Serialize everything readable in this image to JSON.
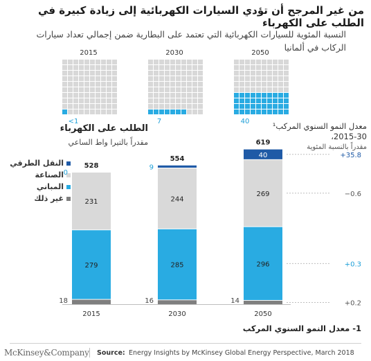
{
  "title": "من غير المرجح أن تؤدي السيارات الكهربائية إلى زيادة كبيرة في الطلب على الكهرباء",
  "subtitle": "النسبة المئوية للسيارات الكهربائية التي تعتمد على البطارية ضمن إجمالي تعداد سيارات الركاب في ألمانيا",
  "colors": {
    "road_transport": "#1f5aa6",
    "industry": "#d9d9d9",
    "buildings": "#29abe2",
    "other": "#7f7f7f",
    "waffle_on": "#29abe2",
    "waffle_off": "#d8d8d8",
    "accent_text": "#1fa0d8"
  },
  "waffle": [
    {
      "year": "2015",
      "percent_label": "<1",
      "percent": 1
    },
    {
      "year": "2030",
      "percent_label": "7",
      "percent": 7
    },
    {
      "year": "2050",
      "percent_label": "40",
      "percent": 40
    }
  ],
  "demand": {
    "title": "الطلب على الكهرباء",
    "unit": "مقدراً بالتيرا واط الساعي"
  },
  "growth": {
    "title": "معدل النمو السنوي المركب¹ 30-2015،",
    "unit": "مقدراً بالنسبة المئوية"
  },
  "legend": [
    {
      "label": "النقل الطرقي",
      "color": "#1f5aa6"
    },
    {
      "label": "الصناعة",
      "color": "#d9d9d9"
    },
    {
      "label": "المباني",
      "color": "#29abe2"
    },
    {
      "label": "غير ذلك",
      "color": "#7f7f7f"
    }
  ],
  "footnote": "1- معدل النمو السنوي المركب",
  "footer": {
    "logo": "McKinsey&Company",
    "source_label": "Source:",
    "source_text": "Energy Insights by McKinsey Global Energy Perspective, March 2018"
  },
  "chart_data": {
    "type": "bar",
    "stacked": true,
    "categories": [
      "2015",
      "2030",
      "2050"
    ],
    "totals": [
      528,
      554,
      619
    ],
    "series": [
      {
        "name": "غير ذلك",
        "values": [
          18,
          16,
          14
        ],
        "color": "#7f7f7f"
      },
      {
        "name": "المباني",
        "values": [
          279,
          285,
          296
        ],
        "color": "#29abe2"
      },
      {
        "name": "الصناعة",
        "values": [
          231,
          244,
          269
        ],
        "color": "#d9d9d9"
      },
      {
        "name": "النقل الطرقي",
        "values": [
          0,
          9,
          40
        ],
        "color": "#1f5aa6"
      }
    ],
    "growth_rates": [
      "+35.8",
      "−0.6",
      "+0.3",
      "+0.2"
    ],
    "legend_position": "left"
  }
}
